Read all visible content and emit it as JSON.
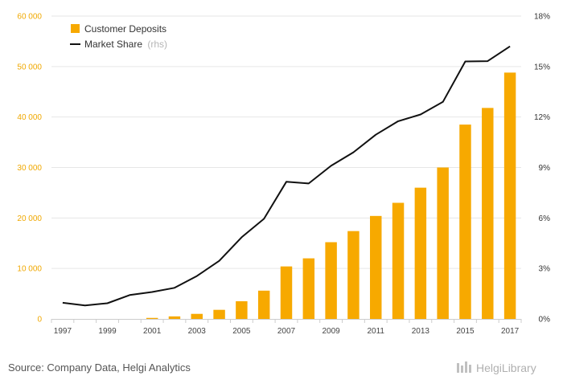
{
  "chart_data": {
    "type": "bar",
    "categories": [
      "1997",
      "1998",
      "1999",
      "2000",
      "2001",
      "2002",
      "2003",
      "2004",
      "2005",
      "2006",
      "2007",
      "2008",
      "2009",
      "2010",
      "2011",
      "2012",
      "2013",
      "2014",
      "2015",
      "2016",
      "2017"
    ],
    "x_tick_labels": [
      "1997",
      "1999",
      "2001",
      "2003",
      "2005",
      "2007",
      "2009",
      "2011",
      "2013",
      "2015",
      "2017"
    ],
    "series": [
      {
        "name": "Customer Deposits",
        "type": "bar",
        "axis": "left",
        "color": "#f7a900",
        "values": [
          0,
          0,
          0,
          0,
          200,
          500,
          1000,
          1800,
          3500,
          5600,
          10400,
          12000,
          15200,
          17400,
          20400,
          23000,
          26000,
          30000,
          38500,
          41800,
          48800
        ]
      },
      {
        "name": "Market Share",
        "type": "line",
        "axis": "right",
        "color": "#111111",
        "values": [
          0.96,
          0.8,
          0.93,
          1.42,
          1.6,
          1.85,
          2.55,
          3.45,
          4.85,
          5.95,
          8.15,
          8.05,
          9.1,
          9.9,
          10.95,
          11.75,
          12.15,
          12.9,
          15.3,
          15.32,
          16.2
        ]
      }
    ],
    "legend": {
      "position": "top-left",
      "items": [
        {
          "label": "Customer Deposits",
          "note": ""
        },
        {
          "label": "Market Share",
          "note": "(rhs)"
        }
      ]
    },
    "left_axis": {
      "range": [
        0,
        60000
      ],
      "ticks": [
        0,
        10000,
        20000,
        30000,
        40000,
        50000,
        60000
      ],
      "tick_labels": [
        "0",
        "10 000",
        "20 000",
        "30 000",
        "40 000",
        "50 000",
        "60 000"
      ],
      "color": "#f0a800"
    },
    "right_axis": {
      "range": [
        0,
        18
      ],
      "ticks": [
        0,
        3,
        6,
        9,
        12,
        15,
        18
      ],
      "tick_labels": [
        "0%",
        "3%",
        "6%",
        "9%",
        "12%",
        "15%",
        "18%"
      ]
    },
    "grid": "horizontal"
  },
  "footer": {
    "source": "Source: Company Data, Helgi Analytics",
    "brand": "HelgiLibrary"
  }
}
